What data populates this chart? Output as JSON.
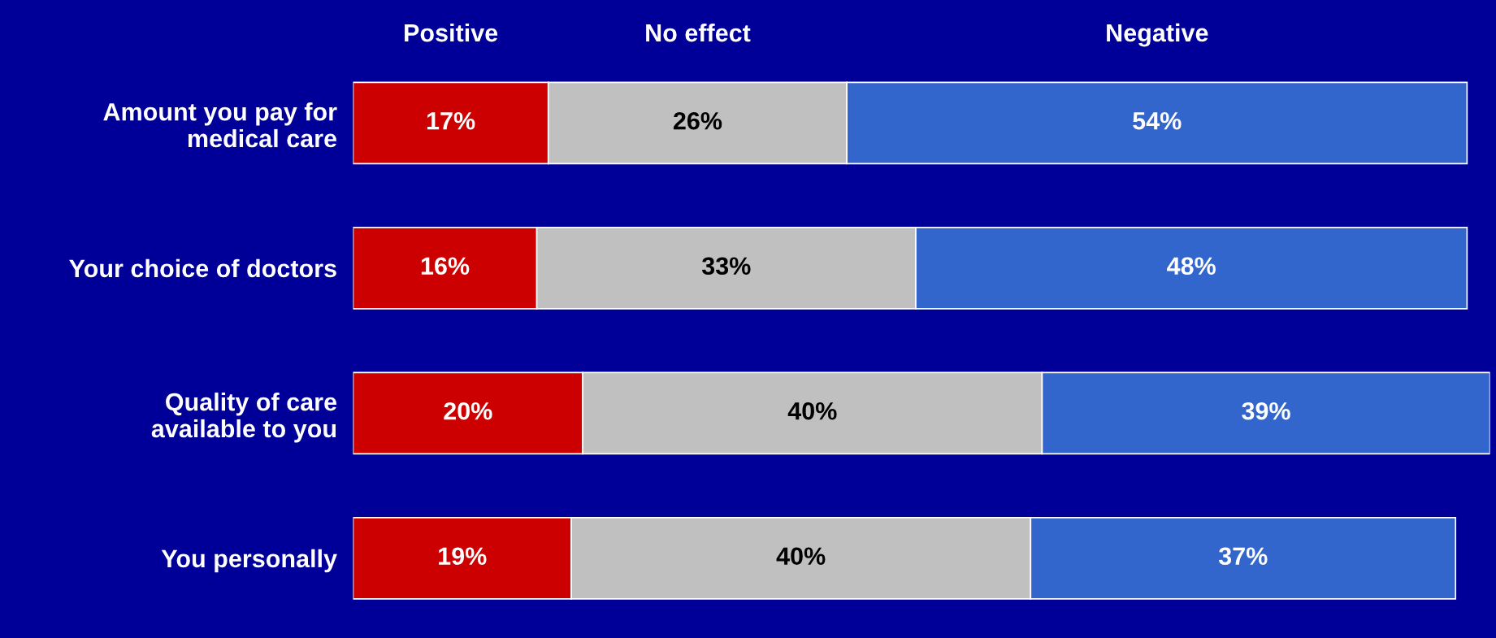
{
  "chart_data": {
    "type": "bar",
    "orientation": "horizontal",
    "stacked": true,
    "legend": "top",
    "grid": false,
    "tick_labels": "y",
    "categories": [
      "Amount you pay for\nmedical care",
      "Your choice of doctors",
      "Quality of care\navailable to you",
      "You personally"
    ],
    "series": [
      {
        "name": "Positive",
        "color": "#cc0000",
        "values": [
          17,
          16,
          20,
          19
        ],
        "value_labels": [
          "17%",
          "16%",
          "20%",
          "19%"
        ]
      },
      {
        "name": "No effect",
        "color": "#c0c0c0",
        "values": [
          26,
          33,
          40,
          40
        ],
        "value_labels": [
          "26%",
          "33%",
          "40%",
          "40%"
        ]
      },
      {
        "name": "Negative",
        "color": "#3366cc",
        "values": [
          54,
          48,
          39,
          37
        ],
        "value_labels": [
          "54%",
          "48%",
          "39%",
          "37%"
        ]
      }
    ]
  }
}
